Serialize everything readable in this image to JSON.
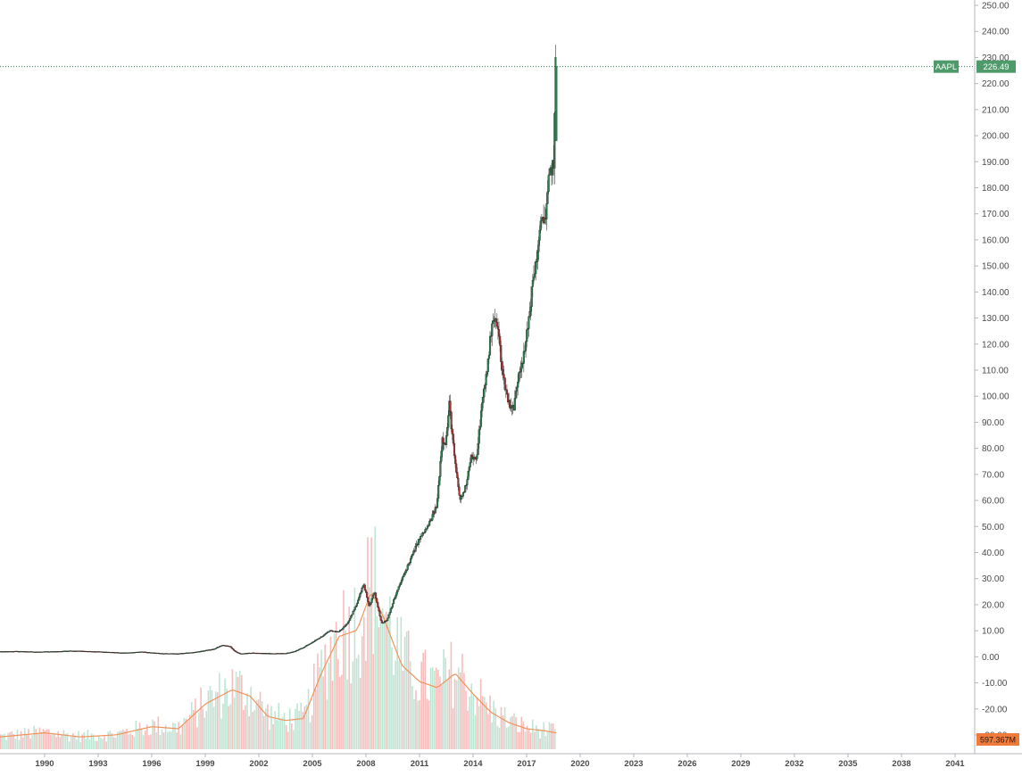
{
  "chart_data": {
    "type": "candlestick",
    "symbol": "AAPL",
    "last_price_label": "226.49",
    "last_price": 226.49,
    "volume_label": "597.367M",
    "y_axis": {
      "min": -30,
      "max": 250,
      "ticks": [
        "250.00",
        "240.00",
        "230.00",
        "220.00",
        "210.00",
        "200.00",
        "190.00",
        "180.00",
        "170.00",
        "160.00",
        "150.00",
        "140.00",
        "130.00",
        "120.00",
        "110.00",
        "100.00",
        "90.00",
        "80.00",
        "70.00",
        "60.00",
        "50.00",
        "40.00",
        "30.00",
        "20.00",
        "10.00",
        "0.00",
        "-10.00",
        "-20.00",
        "-30.00"
      ],
      "tick_values": [
        250,
        240,
        230,
        220,
        210,
        200,
        190,
        180,
        170,
        160,
        150,
        140,
        130,
        120,
        110,
        100,
        90,
        80,
        70,
        60,
        50,
        40,
        30,
        20,
        10,
        0,
        -10,
        -20,
        -30
      ]
    },
    "x_axis": {
      "min": 1987.5,
      "max": 2043.5,
      "ticks": [
        "1990",
        "1993",
        "1996",
        "1999",
        "2002",
        "2005",
        "2008",
        "2011",
        "2014",
        "2017",
        "2020",
        "2023",
        "2026",
        "2029",
        "2032",
        "2035",
        "2038",
        "2041"
      ],
      "tick_values": [
        1990,
        1993,
        1996,
        1999,
        2002,
        2005,
        2008,
        2011,
        2014,
        2017,
        2020,
        2023,
        2026,
        2029,
        2032,
        2035,
        2038,
        2041
      ]
    },
    "grid": false,
    "price_path": [
      [
        1987.5,
        2.0
      ],
      [
        1988.5,
        2.1
      ],
      [
        1989.5,
        1.9
      ],
      [
        1990.5,
        2.0
      ],
      [
        1991.5,
        2.3
      ],
      [
        1992.5,
        2.1
      ],
      [
        1993.5,
        1.8
      ],
      [
        1994.5,
        1.5
      ],
      [
        1995.5,
        1.9
      ],
      [
        1996.5,
        1.3
      ],
      [
        1997.5,
        1.2
      ],
      [
        1998.5,
        1.8
      ],
      [
        1999.5,
        3.0
      ],
      [
        2000.0,
        4.5
      ],
      [
        2000.4,
        4.0
      ],
      [
        2000.7,
        2.0
      ],
      [
        2001.0,
        1.2
      ],
      [
        2001.5,
        1.5
      ],
      [
        2002.5,
        1.3
      ],
      [
        2003.5,
        1.3
      ],
      [
        2004.0,
        2.0
      ],
      [
        2004.5,
        3.5
      ],
      [
        2005.0,
        5.5
      ],
      [
        2005.5,
        7.5
      ],
      [
        2006.0,
        10.0
      ],
      [
        2006.5,
        9.5
      ],
      [
        2007.0,
        13.0
      ],
      [
        2007.5,
        20.0
      ],
      [
        2007.9,
        28.0
      ],
      [
        2008.2,
        19.0
      ],
      [
        2008.5,
        25.0
      ],
      [
        2008.9,
        13.0
      ],
      [
        2009.2,
        14.0
      ],
      [
        2009.6,
        22.0
      ],
      [
        2010.0,
        29.0
      ],
      [
        2010.5,
        37.0
      ],
      [
        2011.0,
        45.0
      ],
      [
        2011.5,
        50.0
      ],
      [
        2012.0,
        58.0
      ],
      [
        2012.3,
        84.0
      ],
      [
        2012.5,
        82.0
      ],
      [
        2012.7,
        97.0
      ],
      [
        2013.0,
        75.0
      ],
      [
        2013.3,
        60.0
      ],
      [
        2013.6,
        65.0
      ],
      [
        2013.9,
        77.0
      ],
      [
        2014.2,
        75.0
      ],
      [
        2014.5,
        95.0
      ],
      [
        2014.9,
        115.0
      ],
      [
        2015.1,
        130.0
      ],
      [
        2015.4,
        127.0
      ],
      [
        2015.7,
        108.0
      ],
      [
        2016.0,
        98.0
      ],
      [
        2016.3,
        95.0
      ],
      [
        2016.6,
        110.0
      ],
      [
        2016.9,
        116.0
      ],
      [
        2017.1,
        127.0
      ],
      [
        2017.4,
        145.0
      ],
      [
        2017.7,
        158.0
      ],
      [
        2017.9,
        170.0
      ],
      [
        2018.1,
        168.0
      ],
      [
        2018.3,
        185.0
      ],
      [
        2018.55,
        190.0
      ],
      [
        2018.65,
        226.49
      ]
    ],
    "volume_ma_path": [
      [
        1987.5,
        0.06
      ],
      [
        1990.0,
        0.08
      ],
      [
        1992.0,
        0.06
      ],
      [
        1994.0,
        0.07
      ],
      [
        1996.0,
        0.11
      ],
      [
        1997.5,
        0.1
      ],
      [
        1999.0,
        0.22
      ],
      [
        2000.5,
        0.29
      ],
      [
        2001.5,
        0.26
      ],
      [
        2002.5,
        0.16
      ],
      [
        2003.5,
        0.14
      ],
      [
        2004.5,
        0.15
      ],
      [
        2005.5,
        0.37
      ],
      [
        2006.5,
        0.55
      ],
      [
        2007.5,
        0.58
      ],
      [
        2008.3,
        0.77
      ],
      [
        2009.0,
        0.64
      ],
      [
        2010.0,
        0.41
      ],
      [
        2011.0,
        0.33
      ],
      [
        2012.0,
        0.3
      ],
      [
        2013.0,
        0.37
      ],
      [
        2014.0,
        0.27
      ],
      [
        2015.0,
        0.18
      ],
      [
        2016.0,
        0.13
      ],
      [
        2017.0,
        0.1
      ],
      [
        2018.0,
        0.09
      ],
      [
        2018.65,
        0.08
      ]
    ]
  }
}
